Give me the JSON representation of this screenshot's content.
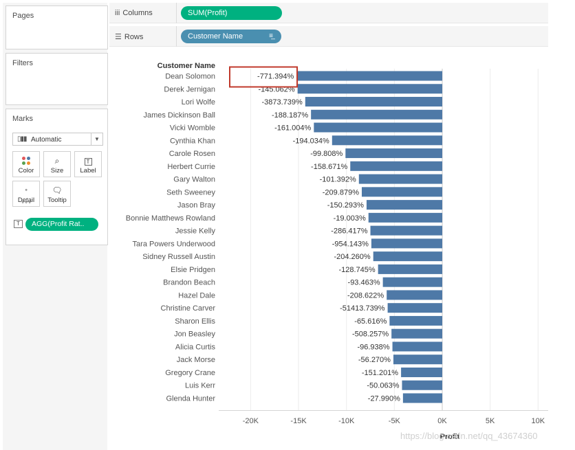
{
  "left_panels": {
    "pages_title": "Pages",
    "filters_title": "Filters",
    "marks_title": "Marks",
    "mark_type": {
      "icon": "bar-chart-icon",
      "label": "Automatic"
    },
    "mark_cards": [
      {
        "name": "color",
        "label": "Color",
        "icon": "color-dots-icon"
      },
      {
        "name": "size",
        "label": "Size",
        "icon": "size-lasso-icon"
      },
      {
        "name": "label",
        "label": "Label",
        "icon": "label-t-icon"
      },
      {
        "name": "detail",
        "label": "Detail",
        "icon": "detail-dots-icon"
      },
      {
        "name": "tooltip",
        "label": "Tooltip",
        "icon": "tooltip-bubble-icon"
      }
    ],
    "mark_field_pill": "AGG(Profit Rat..",
    "mark_field_type_icon": "T"
  },
  "shelves": {
    "columns_label": "Columns",
    "columns_icon": "iii",
    "columns_pill": "SUM(Profit)",
    "rows_label": "Rows",
    "rows_icon": "☰",
    "rows_pill": "Customer Name",
    "rows_pill_sort_icon": "sort-descending-icon"
  },
  "chart_data": {
    "type": "bar",
    "orientation": "horizontal",
    "row_header": "Customer Name",
    "xlabel": "Profit",
    "xlim": [
      -21000,
      11000
    ],
    "x_ticks": [
      -20000,
      -15000,
      -10000,
      -5000,
      0,
      5000,
      10000
    ],
    "x_tick_labels": [
      "-20K",
      "-15K",
      "-10K",
      "-5K",
      "0K",
      "5K",
      "10K"
    ],
    "bar_color": "#4e79a7",
    "highlight_color": "#c0392b",
    "highlighted_label_index": 0,
    "categories": [
      "Dean Solomon",
      "Derek Jernigan",
      "Lori Wolfe",
      "James Dickinson Ball",
      "Vicki Womble",
      "Cynthia Khan",
      "Carole Rosen",
      "Herbert Currie",
      "Gary Walton",
      "Seth Sweeney",
      "Jason Bray",
      "Bonnie Matthews Rowland",
      "Jessie Kelly",
      "Tara Powers Underwood",
      "Sidney Russell Austin",
      "Elsie Pridgen",
      "Brandon Beach",
      "Hazel Dale",
      "Christine Carver",
      "Sharon Ellis",
      "Jon Beasley",
      "Alicia Curtis",
      "Jack Morse",
      "Gregory Crane",
      "Luis Kerr",
      "Glenda Hunter"
    ],
    "values": [
      -15200,
      -15100,
      -14300,
      -13700,
      -13400,
      -11500,
      -10100,
      -9600,
      -8700,
      -8400,
      -7900,
      -7700,
      -7500,
      -7400,
      -7200,
      -6700,
      -6200,
      -5800,
      -5700,
      -5500,
      -5300,
      -5200,
      -5100,
      -4300,
      -4200,
      -4100
    ],
    "data_labels": [
      "-771.394%",
      "-145.062%",
      "-3873.739%",
      "-188.187%",
      "-161.004%",
      "-194.034%",
      "-99.808%",
      "-158.671%",
      "-101.392%",
      "-209.879%",
      "-150.293%",
      "-19.003%",
      "-286.417%",
      "-954.143%",
      "-204.260%",
      "-128.745%",
      "-93.463%",
      "-208.622%",
      "-51413.739%",
      "-65.616%",
      "-508.257%",
      "-96.938%",
      "-56.270%",
      "-151.201%",
      "-50.063%",
      "-27.990%"
    ],
    "grid": true
  },
  "watermark": "https://blog.csdn.net/qq_43674360"
}
